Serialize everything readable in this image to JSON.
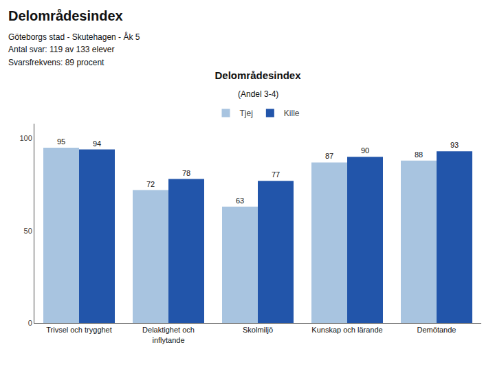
{
  "chart_data": {
    "type": "bar",
    "title": "Delområdesindex",
    "subtitle": "(Andel 3-4)",
    "annotations": [
      "Delområdesindex",
      "Göteborgs stad - Skutehagen - Åk 5",
      "Antal svar: 119 av 133 elever",
      "Svarsfrekvens: 89 procent"
    ],
    "categories": [
      "Trivsel och trygghet",
      "Delaktighet och\ninflytande",
      "Skolmiljö",
      "Kunskap och lärande",
      "Demötande"
    ],
    "series": [
      {
        "name": "Tjej",
        "color": "#a8c4e0",
        "values": [
          95,
          72,
          63,
          87,
          88
        ]
      },
      {
        "name": "Kille",
        "color": "#2255aa",
        "values": [
          94,
          78,
          77,
          90,
          93
        ]
      }
    ],
    "ylim": [
      0,
      108
    ],
    "yticks": [
      0,
      50,
      100
    ],
    "grid": false,
    "legend": "top",
    "data_labels": true
  }
}
